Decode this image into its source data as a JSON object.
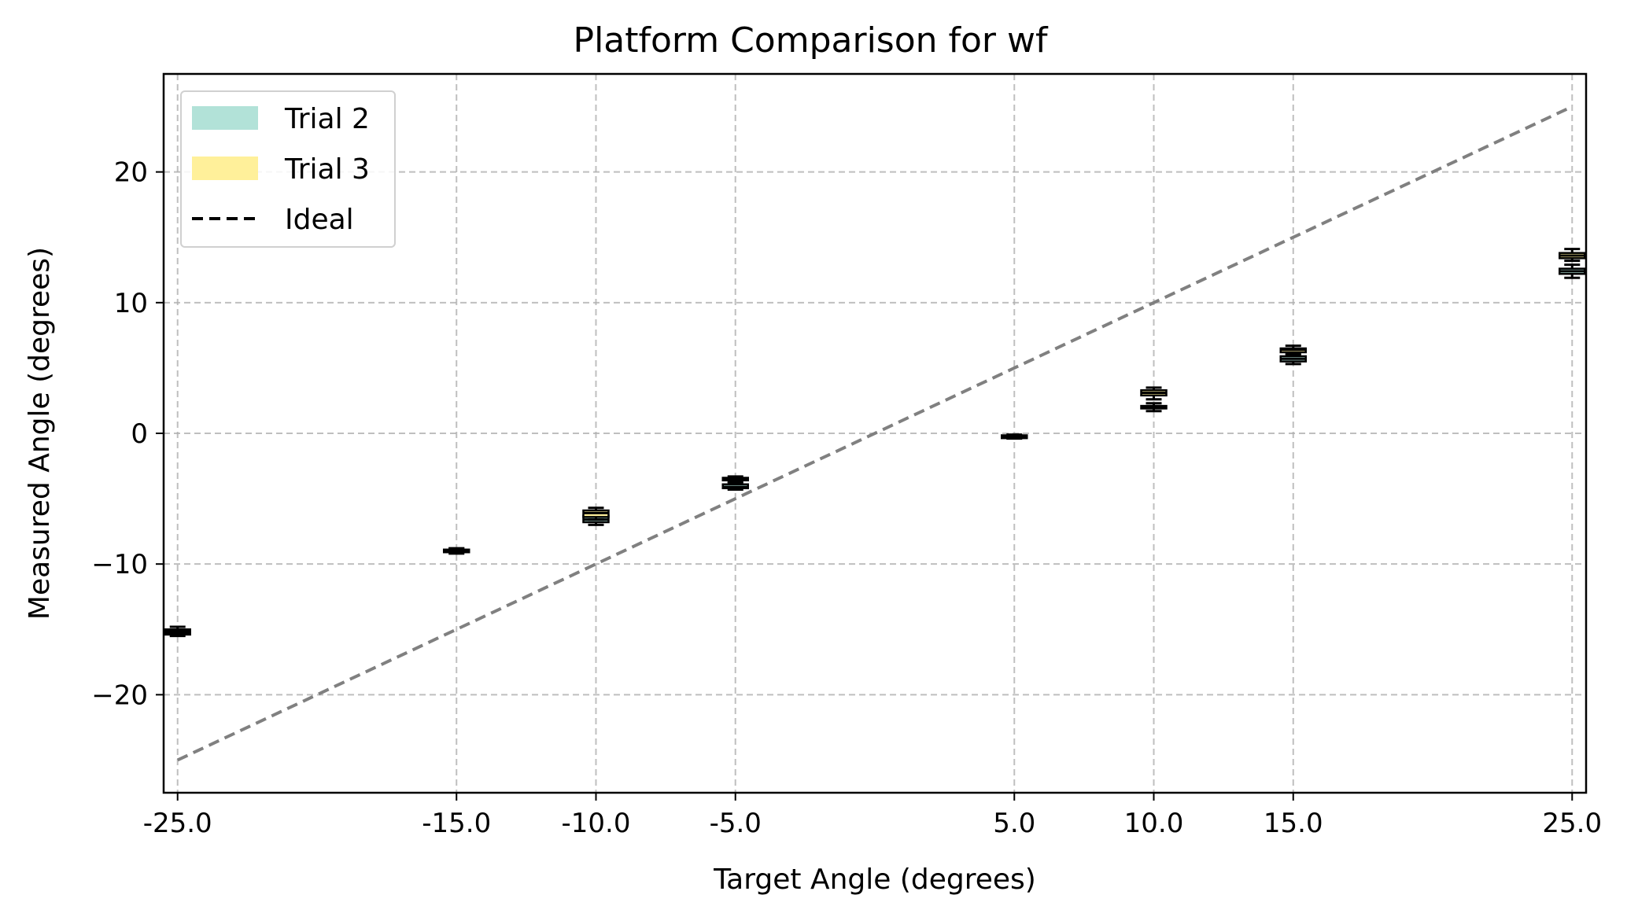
{
  "chart_data": {
    "type": "box",
    "title": "Platform Comparison for wf",
    "xlabel": "Target Angle (degrees)",
    "ylabel": "Measured Angle (degrees)",
    "xlim": [
      -25.5,
      25.5
    ],
    "ylim": [
      -27.5,
      27.5
    ],
    "x_ticks": [
      -25,
      -15,
      -10,
      -5,
      5,
      10,
      15,
      25
    ],
    "x_tick_labels": [
      "-25.0",
      "-15.0",
      "-10.0",
      "-5.0",
      "5.0",
      "10.0",
      "15.0",
      "25.0"
    ],
    "y_ticks": [
      -20,
      -10,
      0,
      10,
      20
    ],
    "y_tick_labels": [
      "−20",
      "−10",
      "0",
      "10",
      "20"
    ],
    "grid": true,
    "legend_position": "top-left",
    "legend": [
      {
        "label": "Trial 2",
        "kind": "patch",
        "color": "#b2e2d8"
      },
      {
        "label": "Trial 3",
        "kind": "patch",
        "color": "#fff09a"
      },
      {
        "label": "Ideal",
        "kind": "dashed-line",
        "color": "#000000"
      }
    ],
    "ideal_line": {
      "x": [
        -25,
        25
      ],
      "y": [
        -25,
        25
      ],
      "color": "#808080"
    },
    "series": [
      {
        "name": "Trial 2",
        "color": "#b2e2d8",
        "boxes": [
          {
            "x": -25,
            "min": -15.5,
            "q1": -15.4,
            "median": -15.3,
            "q3": -15.2,
            "max": -15.1
          },
          {
            "x": -15,
            "min": -9.2,
            "q1": -9.1,
            "median": -9.0,
            "q3": -8.9,
            "max": -8.8
          },
          {
            "x": -10,
            "min": -7.0,
            "q1": -6.8,
            "median": -6.6,
            "q3": -6.3,
            "max": -6.1
          },
          {
            "x": -5,
            "min": -4.3,
            "q1": -4.2,
            "median": -4.1,
            "q3": -3.9,
            "max": -3.7
          },
          {
            "x": 5,
            "min": -0.4,
            "q1": -0.35,
            "median": -0.3,
            "q3": -0.25,
            "max": -0.2
          },
          {
            "x": 10,
            "min": 1.7,
            "q1": 1.9,
            "median": 2.0,
            "q3": 2.1,
            "max": 2.3
          },
          {
            "x": 15,
            "min": 5.3,
            "q1": 5.5,
            "median": 5.7,
            "q3": 5.9,
            "max": 6.1
          },
          {
            "x": 25,
            "min": 11.9,
            "q1": 12.2,
            "median": 12.4,
            "q3": 12.6,
            "max": 12.9
          }
        ]
      },
      {
        "name": "Trial 3",
        "color": "#fff09a",
        "boxes": [
          {
            "x": -25,
            "min": -15.3,
            "q1": -15.2,
            "median": -15.1,
            "q3": -15.0,
            "max": -14.8
          },
          {
            "x": -15,
            "min": -9.1,
            "q1": -9.0,
            "median": -8.95,
            "q3": -8.9,
            "max": -8.8
          },
          {
            "x": -10,
            "min": -6.6,
            "q1": -6.4,
            "median": -6.1,
            "q3": -5.9,
            "max": -5.7
          },
          {
            "x": -5,
            "min": -3.8,
            "q1": -3.6,
            "median": -3.5,
            "q3": -3.4,
            "max": -3.3
          },
          {
            "x": 5,
            "min": -0.3,
            "q1": -0.25,
            "median": -0.2,
            "q3": -0.15,
            "max": -0.1
          },
          {
            "x": 10,
            "min": 2.6,
            "q1": 2.9,
            "median": 3.1,
            "q3": 3.3,
            "max": 3.5
          },
          {
            "x": 15,
            "min": 6.0,
            "q1": 6.2,
            "median": 6.4,
            "q3": 6.5,
            "max": 6.7
          },
          {
            "x": 25,
            "min": 13.2,
            "q1": 13.4,
            "median": 13.6,
            "q3": 13.8,
            "max": 14.1
          }
        ]
      }
    ]
  }
}
